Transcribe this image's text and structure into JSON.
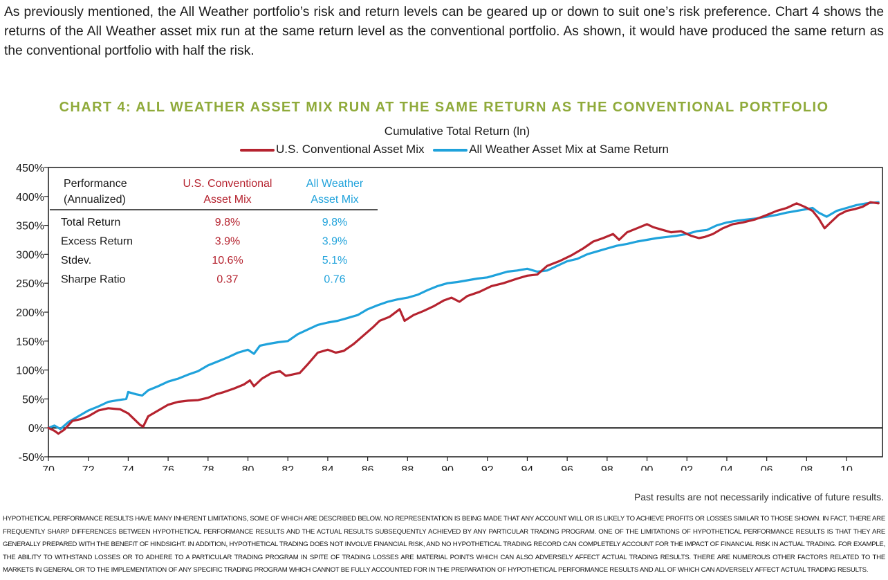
{
  "intro_text": "As previously mentioned, the All Weather portfolio’s risk and return levels can be geared up or down to suit one’s risk preference. Chart 4 shows the returns of the All Weather asset mix run at the same return level as the conventional portfolio. As shown, it would have produced the same return as the conventional portfolio with half the risk.",
  "colors": {
    "conventional": "#b5232f",
    "all_weather": "#1fa2db",
    "heading": "#8faa3a"
  },
  "chart_data": {
    "type": "line",
    "heading": "CHART 4: ALL WEATHER ASSET MIX RUN AT THE SAME RETURN AS THE CONVENTIONAL PORTFOLIO",
    "title": "Cumulative Total Return (ln)",
    "ylabel": "",
    "xlabel": "",
    "ylim": [
      -0.5,
      4.5
    ],
    "xlim": [
      1970,
      2011.8
    ],
    "y_ticks": [
      "450%",
      "400%",
      "350%",
      "300%",
      "250%",
      "200%",
      "150%",
      "100%",
      "50%",
      "0%",
      "-50%"
    ],
    "x_ticks": [
      "70",
      "72",
      "74",
      "76",
      "78",
      "80",
      "82",
      "84",
      "86",
      "88",
      "90",
      "92",
      "94",
      "96",
      "98",
      "00",
      "02",
      "04",
      "06",
      "08",
      "10"
    ],
    "legend_position": "top-center",
    "series": [
      {
        "name": "U.S. Conventional Asset Mix",
        "x": [
          1970,
          1970.3,
          1970.5,
          1970.8,
          1971.2,
          1971.6,
          1972,
          1972.5,
          1973,
          1973.3,
          1973.6,
          1974,
          1974.3,
          1974.6,
          1974.75,
          1975,
          1975.5,
          1976,
          1976.5,
          1977,
          1977.5,
          1978,
          1978.4,
          1978.8,
          1979.3,
          1979.8,
          1980.1,
          1980.3,
          1980.7,
          1981.2,
          1981.6,
          1981.9,
          1982.2,
          1982.6,
          1983,
          1983.5,
          1984,
          1984.4,
          1984.8,
          1985.3,
          1985.8,
          1986.3,
          1986.6,
          1987.1,
          1987.6,
          1987.85,
          1988.3,
          1988.8,
          1989.3,
          1989.8,
          1990.2,
          1990.6,
          1991,
          1991.6,
          1992.2,
          1992.8,
          1993.5,
          1994,
          1994.5,
          1995,
          1995.6,
          1996.2,
          1996.8,
          1997.3,
          1997.8,
          1998.3,
          1998.6,
          1999,
          1999.5,
          2000,
          2000.3,
          2000.8,
          2001.2,
          2001.7,
          2002.2,
          2002.6,
          2002.9,
          2003.3,
          2003.8,
          2004.3,
          2004.8,
          2005.4,
          2006,
          2006.5,
          2007,
          2007.5,
          2007.9,
          2008.3,
          2008.6,
          2008.9,
          2009.2,
          2009.6,
          2010,
          2010.4,
          2010.8,
          2011.2,
          2011.6
        ],
        "values": [
          0,
          -0.05,
          -0.1,
          -0.03,
          0.12,
          0.15,
          0.2,
          0.3,
          0.34,
          0.33,
          0.32,
          0.25,
          0.15,
          0.05,
          0.02,
          0.2,
          0.3,
          0.4,
          0.45,
          0.47,
          0.48,
          0.52,
          0.58,
          0.62,
          0.68,
          0.75,
          0.82,
          0.72,
          0.85,
          0.95,
          0.98,
          0.9,
          0.92,
          0.95,
          1.1,
          1.3,
          1.35,
          1.3,
          1.33,
          1.45,
          1.6,
          1.75,
          1.85,
          1.92,
          2.05,
          1.85,
          1.95,
          2.02,
          2.1,
          2.2,
          2.25,
          2.18,
          2.28,
          2.35,
          2.45,
          2.5,
          2.58,
          2.63,
          2.65,
          2.8,
          2.88,
          2.98,
          3.1,
          3.22,
          3.28,
          3.35,
          3.25,
          3.38,
          3.45,
          3.52,
          3.47,
          3.42,
          3.38,
          3.4,
          3.32,
          3.28,
          3.3,
          3.35,
          3.45,
          3.52,
          3.55,
          3.6,
          3.68,
          3.75,
          3.8,
          3.88,
          3.82,
          3.75,
          3.62,
          3.45,
          3.55,
          3.68,
          3.75,
          3.78,
          3.82,
          3.9,
          3.88
        ]
      },
      {
        "name": "All Weather Asset Mix at Same Return",
        "x": [
          1970,
          1970.3,
          1970.6,
          1971,
          1971.5,
          1972,
          1972.5,
          1973,
          1973.5,
          1973.9,
          1974,
          1974.4,
          1974.7,
          1975,
          1975.5,
          1976,
          1976.5,
          1977,
          1977.5,
          1978,
          1978.5,
          1979,
          1979.5,
          1980,
          1980.3,
          1980.6,
          1981,
          1981.5,
          1982,
          1982.5,
          1983,
          1983.5,
          1984,
          1984.5,
          1985,
          1985.5,
          1986,
          1986.5,
          1987,
          1987.5,
          1988,
          1988.5,
          1989,
          1989.5,
          1990,
          1990.5,
          1991,
          1991.5,
          1992,
          1992.5,
          1993,
          1993.5,
          1994,
          1994.5,
          1995,
          1995.5,
          1996,
          1996.5,
          1997,
          1997.5,
          1998,
          1998.5,
          1999,
          1999.5,
          2000,
          2000.5,
          2001,
          2001.5,
          2002,
          2002.5,
          2003,
          2003.5,
          2004,
          2004.5,
          2005,
          2005.5,
          2006,
          2006.5,
          2007,
          2007.5,
          2008,
          2008.3,
          2008.6,
          2009,
          2009.5,
          2010,
          2010.5,
          2011,
          2011.6
        ],
        "values": [
          0,
          0.04,
          -0.02,
          0.1,
          0.2,
          0.3,
          0.37,
          0.45,
          0.48,
          0.5,
          0.62,
          0.58,
          0.56,
          0.65,
          0.72,
          0.8,
          0.85,
          0.92,
          0.98,
          1.08,
          1.15,
          1.22,
          1.3,
          1.35,
          1.28,
          1.42,
          1.45,
          1.48,
          1.5,
          1.62,
          1.7,
          1.78,
          1.82,
          1.85,
          1.9,
          1.95,
          2.05,
          2.12,
          2.18,
          2.22,
          2.25,
          2.3,
          2.38,
          2.45,
          2.5,
          2.52,
          2.55,
          2.58,
          2.6,
          2.65,
          2.7,
          2.72,
          2.75,
          2.7,
          2.72,
          2.8,
          2.88,
          2.92,
          3.0,
          3.05,
          3.1,
          3.15,
          3.18,
          3.22,
          3.25,
          3.28,
          3.3,
          3.32,
          3.35,
          3.4,
          3.42,
          3.5,
          3.55,
          3.58,
          3.6,
          3.62,
          3.65,
          3.68,
          3.72,
          3.75,
          3.78,
          3.8,
          3.72,
          3.65,
          3.75,
          3.8,
          3.85,
          3.88,
          3.9
        ]
      }
    ],
    "table": {
      "header": [
        "Performance (Annualized)",
        "U.S. Conventional Asset Mix",
        "All Weather Asset Mix"
      ],
      "header_lines": [
        [
          "Performance",
          "(Annualized)"
        ],
        [
          "U.S. Conventional",
          "Asset Mix"
        ],
        [
          "All Weather",
          "Asset Mix"
        ]
      ],
      "rows": [
        {
          "label": "Total Return",
          "conventional": "9.8%",
          "all_weather": "9.8%"
        },
        {
          "label": "Excess Return",
          "conventional": "3.9%",
          "all_weather": "3.9%"
        },
        {
          "label": "Stdev.",
          "conventional": "10.6%",
          "all_weather": "5.1%"
        },
        {
          "label": "Sharpe Ratio",
          "conventional": "0.37",
          "all_weather": "0.76"
        }
      ]
    }
  },
  "past_results_note": "Past results are not necessarily indicative of future results.",
  "disclaimer": "HYPOTHETICAL PERFORMANCE RESULTS HAVE MANY INHERENT LIMITATIONS, SOME OF WHICH ARE DESCRIBED BELOW. NO REPRESENTATION IS BEING MADE THAT ANY ACCOUNT WILL OR IS LIKELY TO ACHIEVE PROFITS OR LOSSES SIMILAR TO THOSE SHOWN. IN FACT, THERE ARE FREQUENTLY SHARP DIFFERENCES BETWEEN HYPOTHETICAL PERFORMANCE RESULTS AND THE ACTUAL RESULTS SUBSEQUENTLY ACHIEVED BY ANY PARTICULAR TRADING PROGRAM. ONE OF THE LIMITATIONS OF HYPOTHETICAL PERFORMANCE RESULTS IS THAT THEY ARE GENERALLY PREPARED WITH THE BENEFIT OF HINDSIGHT. IN ADDITION, HYPOTHETICAL TRADING DOES NOT INVOLVE FINANCIAL RISK, AND NO HYPOTHETICAL TRADING RECORD CAN COMPLETELY ACCOUNT FOR THE IMPACT OF FINANCIAL RISK IN ACTUAL TRADING. FOR EXAMPLE, THE ABILITY TO WITHSTAND LOSSES OR TO ADHERE TO A PARTICULAR TRADING PROGRAM IN SPITE OF TRADING LOSSES ARE MATERIAL POINTS WHICH CAN ALSO ADVERSELY AFFECT ACTUAL TRADING RESULTS. THERE ARE NUMEROUS OTHER FACTORS RELATED TO THE MARKETS IN GENERAL OR TO THE IMPLEMENTATION OF ANY SPECIFIC TRADING PROGRAM WHICH CANNOT BE FULLY ACCOUNTED FOR IN THE PREPARATION OF HYPOTHETICAL PERFORMANCE RESULTS AND ALL OF WHICH CAN ADVERSELY AFFECT ACTUAL TRADING RESULTS."
}
